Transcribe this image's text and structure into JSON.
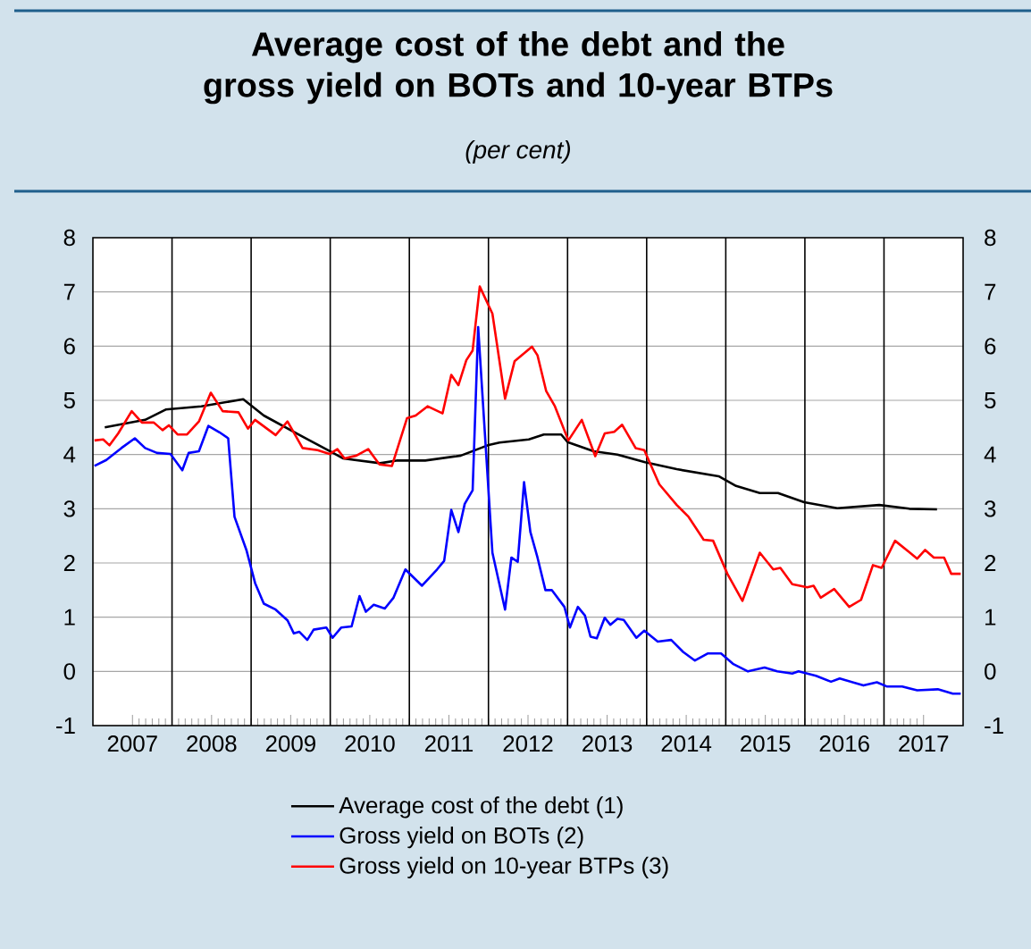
{
  "chart_data": {
    "type": "line",
    "title": "Average cost of the debt and the gross yield on BOTs and 10-year BTPs",
    "subtitle": "(per cent)",
    "xlim": [
      2007,
      2018
    ],
    "xticks": [
      {
        "value": 2007.5,
        "label": "2007"
      },
      {
        "value": 2008.5,
        "label": "2008"
      },
      {
        "value": 2009.5,
        "label": "2009"
      },
      {
        "value": 2010.5,
        "label": "2010"
      },
      {
        "value": 2011.5,
        "label": "2011"
      },
      {
        "value": 2012.5,
        "label": "2012"
      },
      {
        "value": 2013.5,
        "label": "2013"
      },
      {
        "value": 2014.5,
        "label": "2014"
      },
      {
        "value": 2015.5,
        "label": "2015"
      },
      {
        "value": 2016.5,
        "label": "2016"
      },
      {
        "value": 2017.5,
        "label": "2017"
      }
    ],
    "ylim": [
      -1,
      8
    ],
    "yticks": [
      -1,
      0,
      1,
      2,
      3,
      4,
      5,
      6,
      7,
      8
    ],
    "y2lim": [
      -1,
      8
    ],
    "y2ticks": [
      -1,
      0,
      1,
      2,
      3,
      4,
      5,
      6,
      7,
      8
    ],
    "grid": "y",
    "legend": "bottom",
    "ref_lines": [
      {
        "axis": "x",
        "value": 2008,
        "color": "#000000"
      },
      {
        "axis": "x",
        "value": 2009,
        "color": "#000000"
      },
      {
        "axis": "x",
        "value": 2010,
        "color": "#000000"
      },
      {
        "axis": "x",
        "value": 2011,
        "color": "#000000"
      },
      {
        "axis": "x",
        "value": 2012,
        "color": "#000000"
      },
      {
        "axis": "x",
        "value": 2013,
        "color": "#000000"
      },
      {
        "axis": "x",
        "value": 2014,
        "color": "#000000"
      },
      {
        "axis": "x",
        "value": 2015,
        "color": "#000000"
      },
      {
        "axis": "x",
        "value": 2016,
        "color": "#000000"
      },
      {
        "axis": "x",
        "value": 2017,
        "color": "#000000"
      }
    ],
    "series": [
      {
        "name": "Average cost of the debt (1)",
        "color": "#000000",
        "x": [
          2007.15,
          2007.66,
          2007.92,
          2008.37,
          2008.9,
          2009.16,
          2009.65,
          2010.0,
          2010.16,
          2010.63,
          2010.85,
          2011.2,
          2011.65,
          2011.99,
          2012.14,
          2012.51,
          2012.7,
          2012.92,
          2013.0,
          2013.33,
          2013.63,
          2013.98,
          2014.38,
          2014.91,
          2015.13,
          2015.43,
          2015.66,
          2015.99,
          2016.41,
          2016.94,
          2017.32,
          2017.67
        ],
        "values": [
          4.5,
          4.64,
          4.83,
          4.89,
          5.02,
          4.72,
          4.33,
          4.06,
          3.93,
          3.84,
          3.89,
          3.89,
          3.98,
          4.17,
          4.22,
          4.28,
          4.37,
          4.37,
          4.23,
          4.06,
          4.0,
          3.86,
          3.73,
          3.6,
          3.42,
          3.29,
          3.29,
          3.12,
          3.01,
          3.07,
          3.0,
          2.99
        ]
      },
      {
        "name": "Gross yield on BOTs (2)",
        "color": "#0000ff",
        "x": [
          2007.02,
          2007.17,
          2007.36,
          2007.53,
          2007.66,
          2007.81,
          2007.98,
          2008.13,
          2008.21,
          2008.34,
          2008.46,
          2008.6,
          2008.71,
          2008.79,
          2008.94,
          2009.05,
          2009.16,
          2009.31,
          2009.46,
          2009.54,
          2009.61,
          2009.71,
          2009.79,
          2009.95,
          2010.03,
          2010.14,
          2010.27,
          2010.37,
          2010.45,
          2010.55,
          2010.69,
          2010.8,
          2010.95,
          2011.16,
          2011.35,
          2011.44,
          2011.53,
          2011.62,
          2011.7,
          2011.8,
          2011.87,
          2012.05,
          2012.21,
          2012.29,
          2012.37,
          2012.45,
          2012.53,
          2012.62,
          2012.72,
          2012.8,
          2012.96,
          2013.03,
          2013.13,
          2013.22,
          2013.29,
          2013.37,
          2013.47,
          2013.54,
          2013.63,
          2013.71,
          2013.87,
          2013.97,
          2014.14,
          2014.31,
          2014.46,
          2014.61,
          2014.77,
          2014.94,
          2015.09,
          2015.28,
          2015.49,
          2015.65,
          2015.84,
          2015.92,
          2016.14,
          2016.33,
          2016.44,
          2016.74,
          2016.91,
          2017.04,
          2017.23,
          2017.42,
          2017.68,
          2017.87,
          2017.97
        ],
        "values": [
          3.79,
          3.9,
          4.12,
          4.3,
          4.12,
          4.03,
          4.01,
          3.71,
          4.03,
          4.06,
          4.53,
          4.41,
          4.3,
          2.85,
          2.24,
          1.63,
          1.25,
          1.14,
          0.94,
          0.7,
          0.73,
          0.58,
          0.77,
          0.81,
          0.62,
          0.81,
          0.83,
          1.39,
          1.1,
          1.23,
          1.16,
          1.36,
          1.88,
          1.58,
          1.88,
          2.04,
          2.98,
          2.57,
          3.09,
          3.34,
          6.35,
          2.19,
          1.14,
          2.1,
          2.02,
          3.49,
          2.57,
          2.1,
          1.5,
          1.5,
          1.19,
          0.81,
          1.19,
          1.03,
          0.64,
          0.61,
          0.99,
          0.86,
          0.97,
          0.95,
          0.62,
          0.75,
          0.55,
          0.58,
          0.36,
          0.2,
          0.33,
          0.33,
          0.14,
          0.0,
          0.07,
          0.0,
          -0.04,
          0.0,
          -0.08,
          -0.19,
          -0.13,
          -0.26,
          -0.2,
          -0.28,
          -0.28,
          -0.35,
          -0.33,
          -0.41,
          -0.41
        ]
      },
      {
        "name": "Gross yield on 10-year BTPs (3)",
        "color": "#ff0000",
        "x": [
          2007.02,
          2007.13,
          2007.21,
          2007.32,
          2007.49,
          2007.62,
          2007.77,
          2007.88,
          2007.96,
          2008.07,
          2008.19,
          2008.34,
          2008.49,
          2008.64,
          2008.84,
          2008.96,
          2009.05,
          2009.31,
          2009.46,
          2009.65,
          2009.84,
          2009.99,
          2010.09,
          2010.18,
          2010.33,
          2010.48,
          2010.62,
          2010.78,
          2010.97,
          2011.08,
          2011.23,
          2011.42,
          2011.53,
          2011.62,
          2011.72,
          2011.8,
          2011.89,
          2012.05,
          2012.21,
          2012.33,
          2012.55,
          2012.62,
          2012.73,
          2012.84,
          2013.01,
          2013.18,
          2013.35,
          2013.47,
          2013.59,
          2013.69,
          2013.86,
          2013.97,
          2014.16,
          2014.38,
          2014.53,
          2014.72,
          2014.84,
          2015.02,
          2015.21,
          2015.43,
          2015.6,
          2015.69,
          2015.84,
          2016.03,
          2016.11,
          2016.2,
          2016.37,
          2016.56,
          2016.71,
          2016.86,
          2016.97,
          2017.14,
          2017.31,
          2017.42,
          2017.52,
          2017.63,
          2017.76,
          2017.85,
          2017.97
        ],
        "values": [
          4.26,
          4.28,
          4.17,
          4.39,
          4.8,
          4.59,
          4.59,
          4.45,
          4.54,
          4.37,
          4.37,
          4.61,
          5.14,
          4.8,
          4.78,
          4.48,
          4.64,
          4.36,
          4.61,
          4.12,
          4.08,
          4.01,
          4.1,
          3.93,
          3.98,
          4.1,
          3.82,
          3.79,
          4.67,
          4.72,
          4.89,
          4.76,
          5.47,
          5.28,
          5.74,
          5.92,
          7.1,
          6.6,
          5.03,
          5.72,
          5.99,
          5.83,
          5.17,
          4.89,
          4.26,
          4.64,
          3.97,
          4.39,
          4.42,
          4.55,
          4.12,
          4.08,
          3.45,
          3.07,
          2.85,
          2.43,
          2.41,
          1.8,
          1.3,
          2.19,
          1.88,
          1.91,
          1.61,
          1.55,
          1.58,
          1.36,
          1.52,
          1.19,
          1.32,
          1.96,
          1.91,
          2.41,
          2.21,
          2.08,
          2.24,
          2.1,
          2.1,
          1.8,
          1.8
        ]
      }
    ]
  }
}
